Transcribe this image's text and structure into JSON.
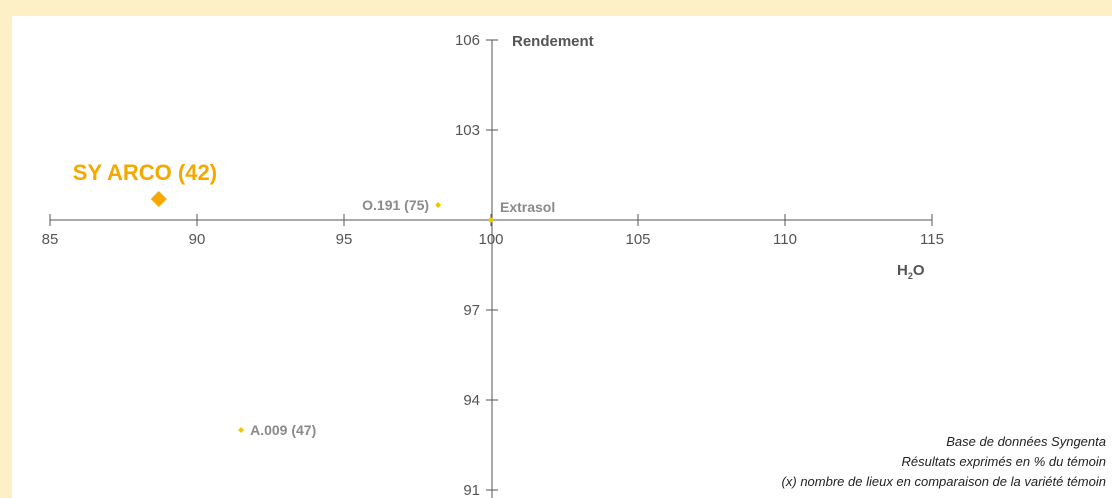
{
  "chart_data": {
    "type": "scatter",
    "title": "",
    "xlabel": "H",
    "xlabel_sub": "2",
    "xlabel_end": "O",
    "ylabel": "Rendement",
    "xlim": [
      85,
      115
    ],
    "ylim": [
      91,
      106
    ],
    "x_ticks": [
      "85",
      "90",
      "95",
      "100",
      "105",
      "110",
      "115"
    ],
    "y_ticks": [
      "106",
      "103",
      "97",
      "94",
      "91"
    ],
    "reference": {
      "label": "Extrasol",
      "x": 100,
      "y": 100
    },
    "points": [
      {
        "label": "SY ARCO (42)",
        "x": 88.7,
        "y": 100.7,
        "highlight": true
      },
      {
        "label": "O.191 (75)",
        "x": 98.2,
        "y": 100.5,
        "highlight": false
      },
      {
        "label": "A.009 (47)",
        "x": 91.5,
        "y": 93.0,
        "highlight": false
      }
    ],
    "colors": {
      "accent": "#f5a800",
      "point": "#f5c400",
      "label": "#8a8a8a",
      "axis": "#555555"
    },
    "grid": false
  },
  "notes": [
    "Base de données Syngenta",
    "Résultats exprimés en % du témoin",
    "(x) nombre de lieux en comparaison de la variété témoin"
  ]
}
